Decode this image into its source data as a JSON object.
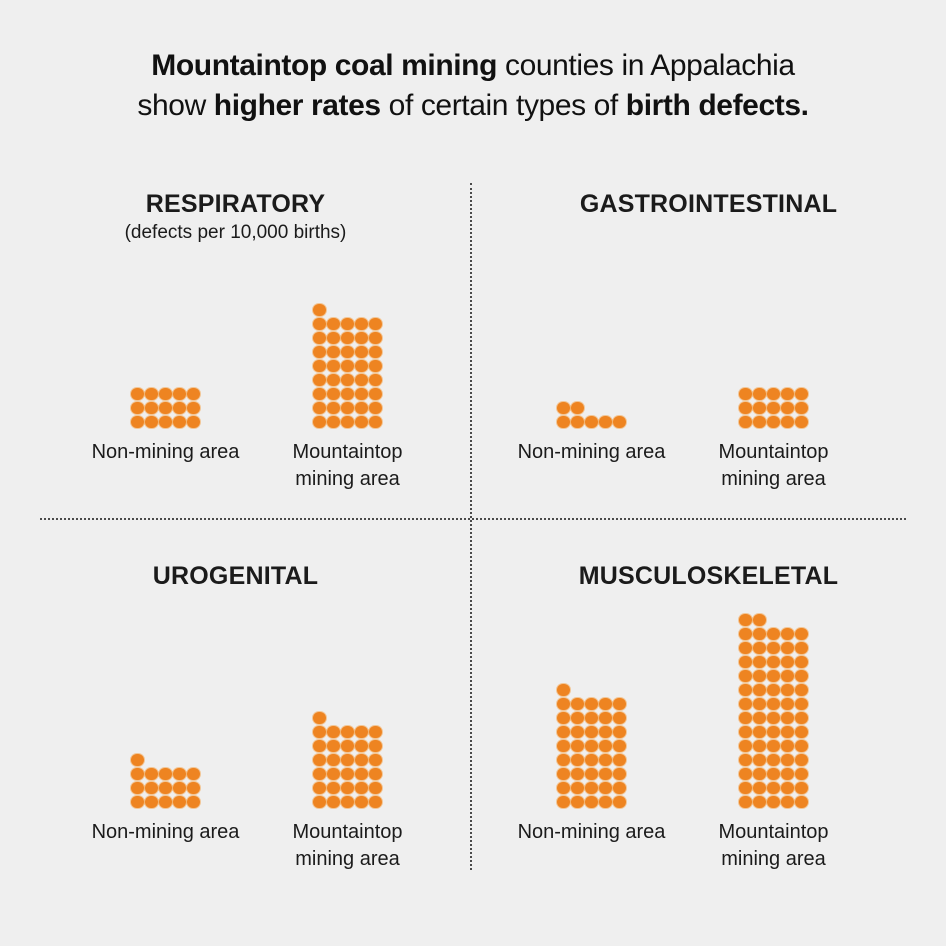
{
  "colors": {
    "background": "#efefef",
    "dot": "#ee8421",
    "text": "#1b1b1b",
    "divider": "#4a4a4a"
  },
  "title": {
    "line1": [
      {
        "text": "Mountaintop coal mining",
        "bold": true
      },
      {
        "text": " counties in Appalachia",
        "bold": false
      }
    ],
    "line2": [
      {
        "text": "show ",
        "bold": false
      },
      {
        "text": "higher rates",
        "bold": true
      },
      {
        "text": " of certain types of ",
        "bold": false
      },
      {
        "text": "birth defects.",
        "bold": true
      }
    ]
  },
  "labels": {
    "non_mining": "Non-mining area",
    "mountaintop": [
      "Mountaintop",
      "mining area"
    ]
  },
  "chart_data": [
    {
      "id": "respiratory",
      "type": "pictogram",
      "title": "RESPIRATORY",
      "subtitle": "(defects per 10,000 births)",
      "unit": "defects per 10,000 births",
      "dots_per_row": 5,
      "dot_fill_order": "full rows of 5 bottom-up, remainder on top row aligned left",
      "categories": [
        "Non-mining area",
        "Mountaintop mining area"
      ],
      "values": [
        15,
        41
      ]
    },
    {
      "id": "gastrointestinal",
      "type": "pictogram",
      "title": "GASTROINTESTINAL",
      "subtitle": "",
      "unit": "defects per 10,000 births",
      "dots_per_row": 5,
      "categories": [
        "Non-mining area",
        "Mountaintop mining area"
      ],
      "values": [
        7,
        15
      ]
    },
    {
      "id": "urogenital",
      "type": "pictogram",
      "title": "UROGENITAL",
      "subtitle": "",
      "unit": "defects per 10,000 births",
      "dots_per_row": 5,
      "categories": [
        "Non-mining area",
        "Mountaintop mining area"
      ],
      "values": [
        16,
        31
      ]
    },
    {
      "id": "musculoskeletal",
      "type": "pictogram",
      "title": "MUSCULOSKELETAL",
      "subtitle": "",
      "unit": "defects per 10,000 births",
      "dots_per_row": 5,
      "categories": [
        "Non-mining area",
        "Mountaintop mining area"
      ],
      "values": [
        41,
        67
      ]
    }
  ]
}
